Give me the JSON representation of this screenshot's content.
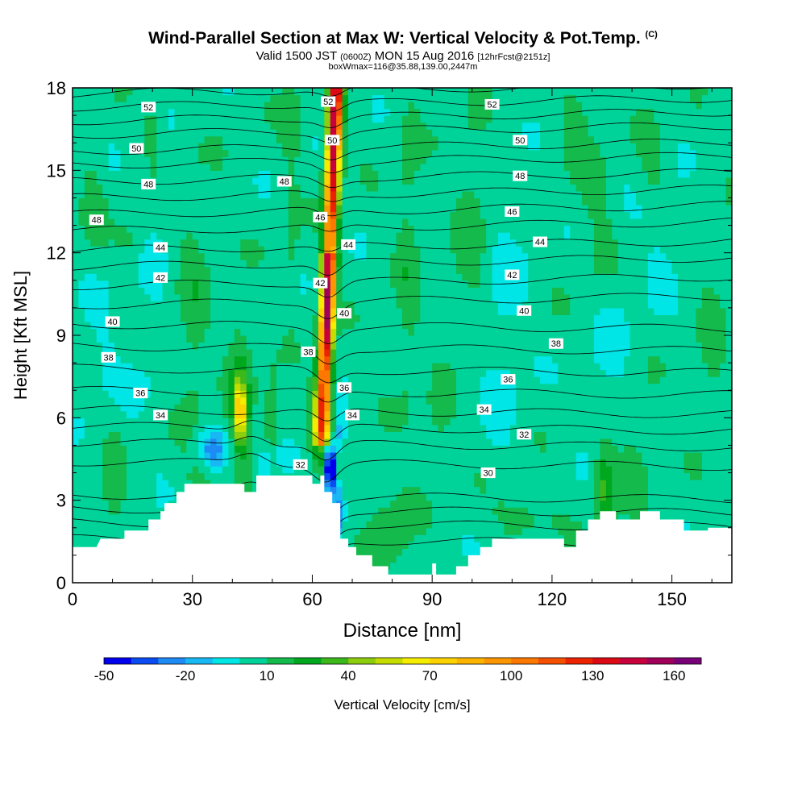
{
  "title": {
    "main": "Wind-Parallel Section at Max W: Vertical Velocity & Pot.Temp.",
    "copyright": "(C)",
    "line2_a": "Valid 1500 JST",
    "line2_b": "(0600Z)",
    "line2_c": "MON 15 Aug 2016",
    "line2_d": "[12hrFcst@2151z]",
    "line3": "boxWmax=116@35.88,139.00,2447m"
  },
  "chart_data": {
    "type": "heatmap",
    "xlabel": "Distance [nm]",
    "ylabel": "Height [Kft MSL]",
    "xlim": [
      0,
      165
    ],
    "ylim": [
      0,
      18
    ],
    "x_ticks": [
      0,
      30,
      60,
      90,
      120,
      150
    ],
    "y_ticks": [
      0,
      3,
      6,
      9,
      12,
      15,
      18
    ],
    "colorbar": {
      "label": "Vertical Velocity [cm/s]",
      "tick_labels": [
        "-50",
        "-20",
        "10",
        "40",
        "70",
        "100",
        "130",
        "160"
      ],
      "levels": [
        -50,
        -40,
        -30,
        -20,
        -10,
        0,
        10,
        20,
        30,
        40,
        50,
        60,
        70,
        80,
        90,
        100,
        110,
        120,
        130,
        140,
        150,
        160,
        170
      ],
      "colors": [
        "#0000ee",
        "#0a4cf2",
        "#1e8af4",
        "#18b8f4",
        "#00e5e5",
        "#00d39a",
        "#14ba4c",
        "#00a81e",
        "#3cb81a",
        "#8ccd0e",
        "#c4dc00",
        "#f5ec00",
        "#fcd200",
        "#fcb400",
        "#fc9600",
        "#fc7800",
        "#f55000",
        "#eb2300",
        "#dc0a14",
        "#c8003c",
        "#a0005a",
        "#780078"
      ]
    },
    "background_value": "0 to 10",
    "terrain_kft": [
      [
        0,
        1.3
      ],
      [
        6,
        1.3
      ],
      [
        7,
        1.6
      ],
      [
        13,
        1.6
      ],
      [
        13,
        1.9
      ],
      [
        19,
        1.9
      ],
      [
        19,
        2.3
      ],
      [
        22,
        2.3
      ],
      [
        22,
        2.6
      ],
      [
        23,
        2.6
      ],
      [
        23,
        2.9
      ],
      [
        26,
        2.9
      ],
      [
        26,
        3.3
      ],
      [
        28,
        3.3
      ],
      [
        28,
        3.6
      ],
      [
        43,
        3.6
      ],
      [
        43,
        3.3
      ],
      [
        46,
        3.3
      ],
      [
        46,
        3.9
      ],
      [
        60,
        3.9
      ],
      [
        60,
        3.6
      ],
      [
        62,
        3.6
      ],
      [
        62,
        3.9
      ],
      [
        63,
        3.9
      ],
      [
        63,
        3.3
      ],
      [
        65,
        3.3
      ],
      [
        65,
        2.9
      ],
      [
        67,
        2.9
      ],
      [
        67,
        1.6
      ],
      [
        69,
        1.6
      ],
      [
        69,
        1.3
      ],
      [
        71,
        1.3
      ],
      [
        71,
        1.0
      ],
      [
        75,
        1.0
      ],
      [
        75,
        0.6
      ],
      [
        79,
        0.6
      ],
      [
        79,
        0.3
      ],
      [
        90,
        0.3
      ],
      [
        90,
        0.7
      ],
      [
        91,
        0.7
      ],
      [
        91,
        0.3
      ],
      [
        96,
        0.3
      ],
      [
        96,
        0.6
      ],
      [
        99,
        0.6
      ],
      [
        99,
        1.0
      ],
      [
        102,
        1.0
      ],
      [
        102,
        1.3
      ],
      [
        105,
        1.3
      ],
      [
        105,
        1.6
      ],
      [
        123,
        1.6
      ],
      [
        123,
        1.3
      ],
      [
        126,
        1.3
      ],
      [
        126,
        1.9
      ],
      [
        129,
        1.9
      ],
      [
        129,
        2.3
      ],
      [
        132,
        2.3
      ],
      [
        132,
        2.6
      ],
      [
        136,
        2.6
      ],
      [
        136,
        2.3
      ],
      [
        142,
        2.3
      ],
      [
        142,
        2.6
      ],
      [
        147,
        2.6
      ],
      [
        147,
        2.3
      ],
      [
        153,
        2.3
      ],
      [
        153,
        1.9
      ],
      [
        159,
        1.9
      ],
      [
        159,
        2.0
      ],
      [
        165,
        2.0
      ]
    ],
    "updraft_core": {
      "x_center_at_0kft": 61,
      "x_center_at_18kft": 66,
      "peak_cm_s": 150
    },
    "downdraft_core": {
      "x": 64.5,
      "y_kft": 4.2,
      "min_cm_s": -50
    },
    "isentropes_theta_c": [
      30,
      32,
      34,
      36,
      38,
      40,
      42,
      44,
      46,
      48,
      50,
      52
    ],
    "isentrope_labels": [
      {
        "text": "52",
        "x": 19,
        "y": 17.3
      },
      {
        "text": "50",
        "x": 16,
        "y": 15.8
      },
      {
        "text": "48",
        "x": 19,
        "y": 14.5
      },
      {
        "text": "48",
        "x": 6,
        "y": 13.2
      },
      {
        "text": "44",
        "x": 22,
        "y": 12.2
      },
      {
        "text": "42",
        "x": 22,
        "y": 11.1
      },
      {
        "text": "40",
        "x": 10,
        "y": 9.5
      },
      {
        "text": "38",
        "x": 9,
        "y": 8.2
      },
      {
        "text": "36",
        "x": 17,
        "y": 6.9
      },
      {
        "text": "34",
        "x": 22,
        "y": 6.1
      },
      {
        "text": "48",
        "x": 53,
        "y": 14.6
      },
      {
        "text": "52",
        "x": 64,
        "y": 17.5
      },
      {
        "text": "50",
        "x": 65,
        "y": 16.1
      },
      {
        "text": "46",
        "x": 62,
        "y": 13.3
      },
      {
        "text": "44",
        "x": 69,
        "y": 12.3
      },
      {
        "text": "42",
        "x": 62,
        "y": 10.9
      },
      {
        "text": "40",
        "x": 68,
        "y": 9.8
      },
      {
        "text": "38",
        "x": 59,
        "y": 8.4
      },
      {
        "text": "36",
        "x": 68,
        "y": 7.1
      },
      {
        "text": "34",
        "x": 70,
        "y": 6.1
      },
      {
        "text": "32",
        "x": 57,
        "y": 4.3
      },
      {
        "text": "52",
        "x": 105,
        "y": 17.4
      },
      {
        "text": "50",
        "x": 112,
        "y": 16.1
      },
      {
        "text": "48",
        "x": 112,
        "y": 14.8
      },
      {
        "text": "46",
        "x": 110,
        "y": 13.5
      },
      {
        "text": "44",
        "x": 117,
        "y": 12.4
      },
      {
        "text": "42",
        "x": 110,
        "y": 11.2
      },
      {
        "text": "40",
        "x": 113,
        "y": 9.9
      },
      {
        "text": "38",
        "x": 121,
        "y": 8.7
      },
      {
        "text": "36",
        "x": 109,
        "y": 7.4
      },
      {
        "text": "34",
        "x": 103,
        "y": 6.3
      },
      {
        "text": "32",
        "x": 113,
        "y": 5.4
      },
      {
        "text": "30",
        "x": 104,
        "y": 4.0
      }
    ]
  }
}
